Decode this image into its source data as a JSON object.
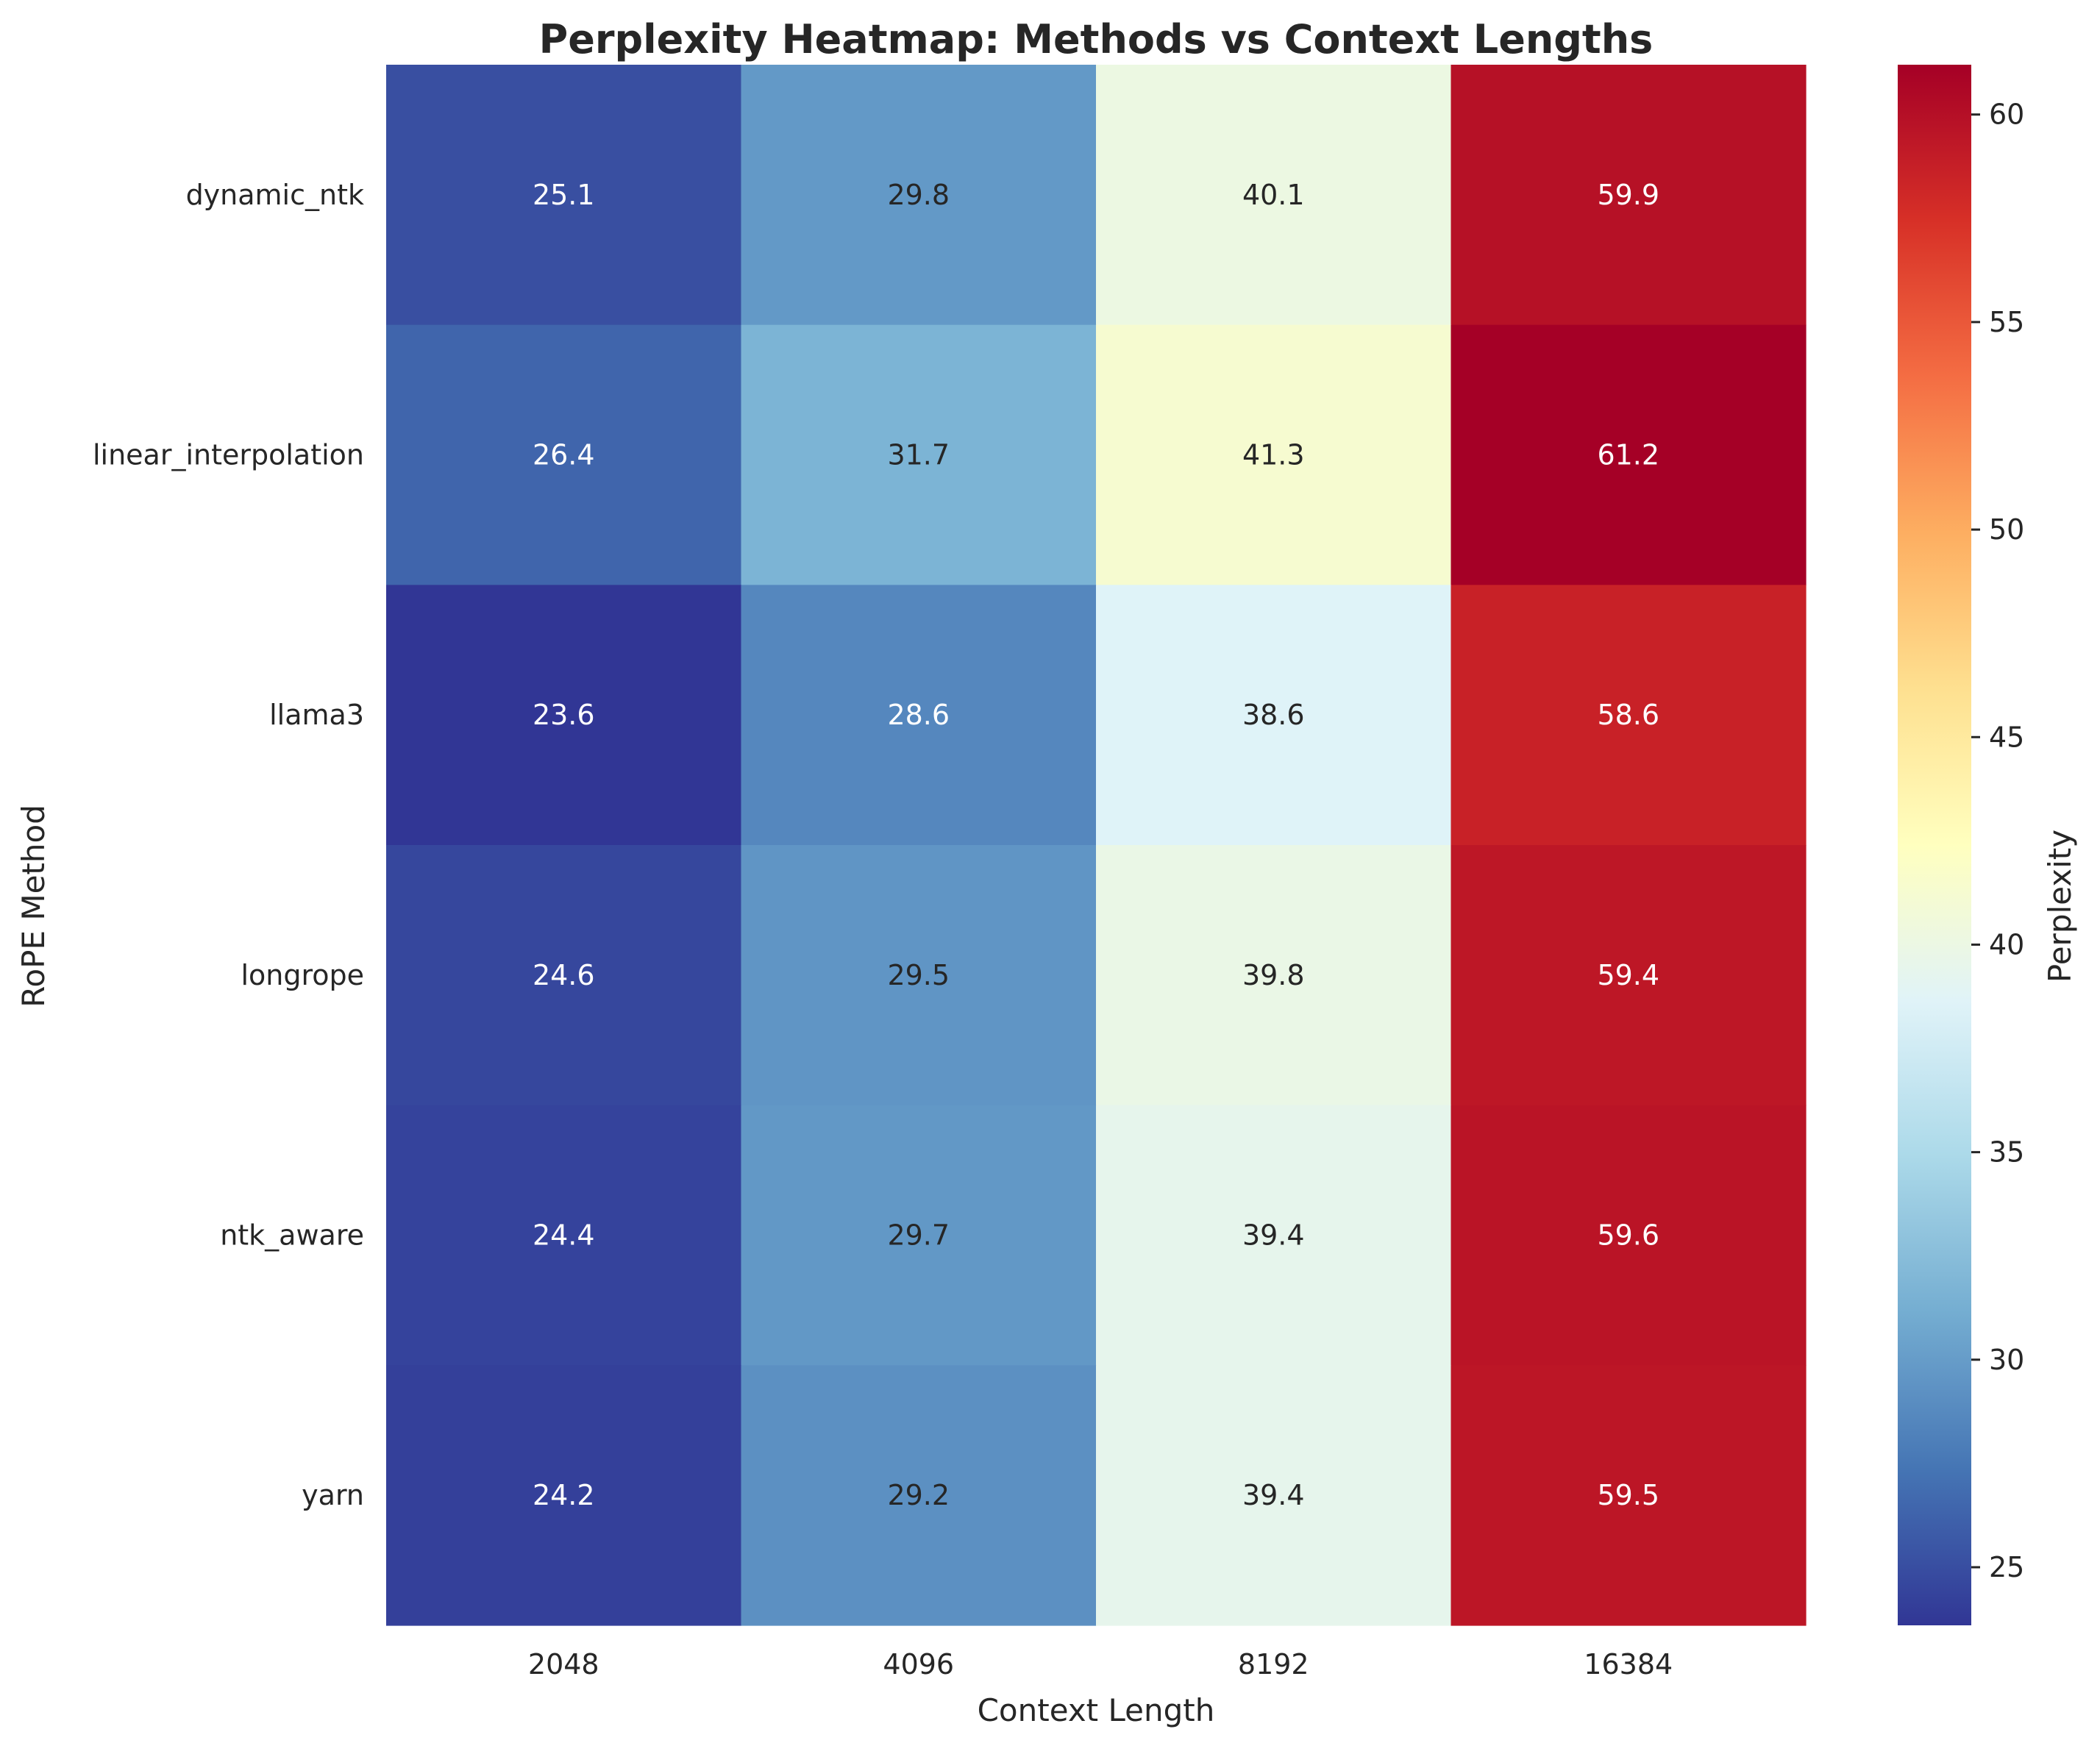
{
  "chart_data": {
    "type": "heatmap",
    "title": "Perplexity Heatmap: Methods vs Context Lengths",
    "xlabel": "Context Length",
    "ylabel": "RoPE Method",
    "x_categories": [
      "2048",
      "4096",
      "8192",
      "16384"
    ],
    "y_categories": [
      "dynamic_ntk",
      "linear_interpolation",
      "llama3",
      "longrope",
      "ntk_aware",
      "yarn"
    ],
    "values": [
      [
        25.1,
        29.8,
        40.1,
        59.9
      ],
      [
        26.4,
        31.7,
        41.3,
        61.2
      ],
      [
        23.6,
        28.6,
        38.6,
        58.6
      ],
      [
        24.6,
        29.5,
        39.8,
        59.4
      ],
      [
        24.4,
        29.7,
        39.4,
        59.6
      ],
      [
        24.2,
        29.2,
        39.4,
        59.5
      ]
    ],
    "value_range": [
      23.6,
      61.2
    ],
    "colormap": "RdYlBu_r",
    "colorbar": {
      "label": "Perplexity",
      "ticks": [
        25,
        30,
        35,
        40,
        45,
        50,
        55,
        60
      ]
    },
    "grid": false,
    "legend": "colorbar-right"
  }
}
